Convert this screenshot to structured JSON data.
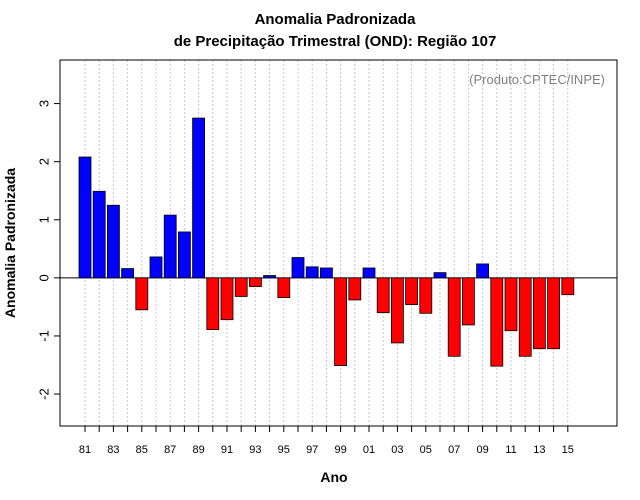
{
  "chart_data": {
    "type": "bar",
    "title": "Anomalia Padronizada",
    "subtitle": "de Precipitação Trimestral (OND): Região 107",
    "xlabel": "Ano",
    "ylabel": "Anomalia Padronizada",
    "credit": "(Produto:CPTEC/INPE)",
    "ylim": [
      -2.55,
      3.75
    ],
    "yticks": [
      -2,
      -1,
      0,
      1,
      2,
      3
    ],
    "xtick_labels": [
      "81",
      "83",
      "85",
      "87",
      "89",
      "91",
      "93",
      "95",
      "97",
      "99",
      "01",
      "03",
      "05",
      "07",
      "09",
      "11",
      "13",
      "15"
    ],
    "categories": [
      "1981",
      "1982",
      "1983",
      "1984",
      "1985",
      "1986",
      "1987",
      "1988",
      "1989",
      "1990",
      "1991",
      "1992",
      "1993",
      "1994",
      "1995",
      "1996",
      "1997",
      "1998",
      "1999",
      "2000",
      "2001",
      "2002",
      "2003",
      "2004",
      "2005",
      "2006",
      "2007",
      "2008",
      "2009",
      "2010",
      "2011",
      "2012",
      "2013",
      "2014",
      "2015"
    ],
    "values": [
      2.08,
      1.49,
      1.25,
      0.16,
      -0.55,
      0.36,
      1.08,
      0.79,
      2.75,
      -0.89,
      -0.72,
      -0.32,
      -0.15,
      0.04,
      -0.34,
      0.35,
      0.19,
      0.17,
      -1.51,
      -0.38,
      0.17,
      -0.6,
      -1.12,
      -0.46,
      -0.61,
      0.09,
      -1.35,
      -0.81,
      0.24,
      -1.52,
      -0.91,
      -1.35,
      -1.22,
      -1.22,
      -0.29
    ],
    "grid": "vertical-dashed",
    "colors": {
      "positive": "#0000ff",
      "negative": "#ff0000",
      "grid": "#c8c8c8",
      "credit": "#808080"
    }
  }
}
